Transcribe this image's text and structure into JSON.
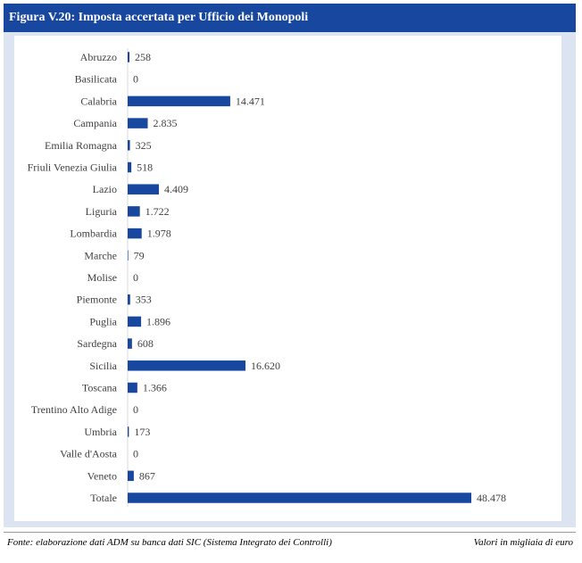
{
  "header": {
    "title": "Figura V.20: Imposta accertata per Ufficio dei Monopoli"
  },
  "footer": {
    "source": "Fonte: elaborazione dati ADM su banca dati SIC (Sistema Integrato dei Controlli)",
    "units": "Valori in migliaia di euro"
  },
  "colors": {
    "bar": "#17479e",
    "header": "#17479e",
    "panel": "#dce4f2"
  },
  "chart_data": {
    "type": "bar",
    "orientation": "horizontal",
    "title": "",
    "xlabel": "",
    "ylabel": "",
    "grid": false,
    "xlim": [
      0,
      48478
    ],
    "categories": [
      "Abruzzo",
      "Basilicata",
      "Calabria",
      "Campania",
      "Emilia Romagna",
      "Friuli Venezia Giulia",
      "Lazio",
      "Liguria",
      "Lombardia",
      "Marche",
      "Molise",
      "Piemonte",
      "Puglia",
      "Sardegna",
      "Sicilia",
      "Toscana",
      "Trentino Alto Adige",
      "Umbria",
      "Valle d'Aosta",
      "Veneto",
      "Totale"
    ],
    "values": [
      258,
      0,
      14471,
      2835,
      325,
      518,
      4409,
      1722,
      1978,
      79,
      0,
      353,
      1896,
      608,
      16620,
      1366,
      0,
      173,
      0,
      867,
      48478
    ],
    "value_labels": [
      "258",
      "0",
      "14.471",
      "2.835",
      "325",
      "518",
      "4.409",
      "1.722",
      "1.978",
      "79",
      "0",
      "353",
      "1.896",
      "608",
      "16.620",
      "1.366",
      "0",
      "173",
      "0",
      "867",
      "48.478"
    ]
  }
}
